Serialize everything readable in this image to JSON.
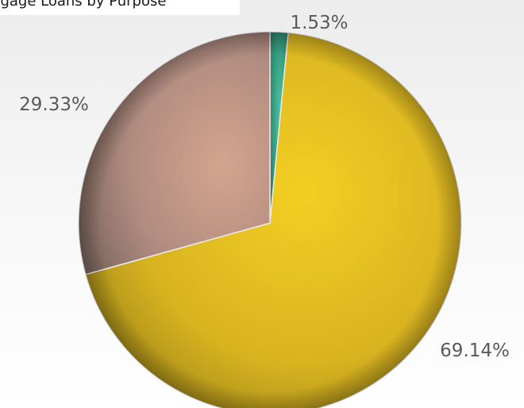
{
  "chart_data": {
    "type": "pie",
    "title": "rtgage Loans by Purpose",
    "categories": [
      "",
      "",
      ""
    ],
    "values": [
      1.53,
      69.14,
      29.33
    ],
    "labels": [
      "1.53%",
      "69.14%",
      "29.33%"
    ],
    "colors": [
      "#2f9a7e",
      "#e0bf24",
      "#c89a86"
    ],
    "legend": "none"
  }
}
